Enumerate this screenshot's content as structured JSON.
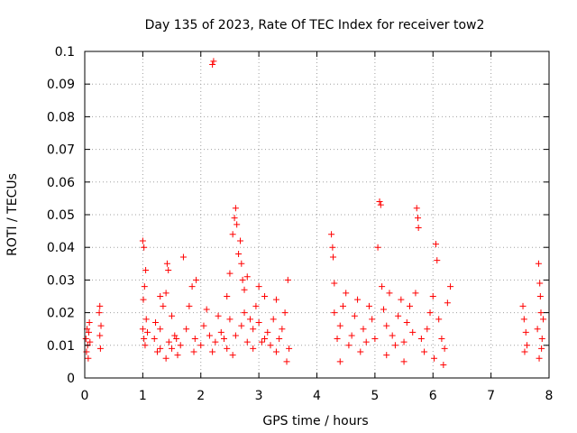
{
  "chart_data": {
    "type": "scatter",
    "title": "Day 135 of 2023, Rate Of TEC Index for receiver tow2",
    "xlabel": "GPS time / hours",
    "ylabel": "ROTI / TECUs",
    "xlim": [
      0,
      8
    ],
    "ylim": [
      0,
      0.1
    ],
    "x_ticks": [
      "0",
      "1",
      "2",
      "3",
      "4",
      "5",
      "6",
      "7",
      "8"
    ],
    "y_ticks": [
      "0",
      "0.01",
      "0.02",
      "0.03",
      "0.04",
      "0.05",
      "0.06",
      "0.07",
      "0.08",
      "0.09",
      "0.1"
    ],
    "grid": true,
    "marker": "plus",
    "color": "#ff0000",
    "series": [
      {
        "points": [
          [
            0.02,
            0.012
          ],
          [
            0.03,
            0.008
          ],
          [
            0.04,
            0.015
          ],
          [
            0.05,
            0.01
          ],
          [
            0.06,
            0.006
          ],
          [
            0.07,
            0.014
          ],
          [
            0.08,
            0.017
          ],
          [
            0.09,
            0.011
          ],
          [
            0.25,
            0.02
          ],
          [
            0.26,
            0.013
          ],
          [
            0.27,
            0.009
          ],
          [
            0.28,
            0.016
          ],
          [
            0.26,
            0.022
          ],
          [
            1.0,
            0.042
          ],
          [
            1.02,
            0.04
          ],
          [
            1.05,
            0.033
          ],
          [
            1.03,
            0.028
          ],
          [
            1.0,
            0.015
          ],
          [
            1.02,
            0.012
          ],
          [
            1.04,
            0.01
          ],
          [
            1.06,
            0.018
          ],
          [
            1.01,
            0.024
          ],
          [
            1.08,
            0.014
          ],
          [
            1.2,
            0.012
          ],
          [
            1.25,
            0.008
          ],
          [
            1.3,
            0.015
          ],
          [
            1.35,
            0.022
          ],
          [
            1.4,
            0.026
          ],
          [
            1.45,
            0.011
          ],
          [
            1.5,
            0.009
          ],
          [
            1.55,
            0.013
          ],
          [
            1.6,
            0.007
          ],
          [
            1.65,
            0.01
          ],
          [
            1.3,
            0.025
          ],
          [
            1.42,
            0.035
          ],
          [
            1.44,
            0.033
          ],
          [
            1.58,
            0.012
          ],
          [
            1.5,
            0.019
          ],
          [
            1.4,
            0.006
          ],
          [
            1.3,
            0.009
          ],
          [
            1.22,
            0.017
          ],
          [
            1.7,
            0.037
          ],
          [
            1.75,
            0.015
          ],
          [
            1.8,
            0.022
          ],
          [
            1.85,
            0.028
          ],
          [
            1.9,
            0.012
          ],
          [
            1.92,
            0.03
          ],
          [
            1.88,
            0.008
          ],
          [
            2.0,
            0.01
          ],
          [
            2.05,
            0.016
          ],
          [
            2.1,
            0.021
          ],
          [
            2.15,
            0.013
          ],
          [
            2.2,
            0.096
          ],
          [
            2.22,
            0.097
          ],
          [
            2.2,
            0.008
          ],
          [
            2.25,
            0.011
          ],
          [
            2.3,
            0.019
          ],
          [
            2.35,
            0.014
          ],
          [
            2.4,
            0.012
          ],
          [
            2.45,
            0.025
          ],
          [
            2.5,
            0.032
          ],
          [
            2.55,
            0.044
          ],
          [
            2.58,
            0.049
          ],
          [
            2.6,
            0.052
          ],
          [
            2.62,
            0.047
          ],
          [
            2.65,
            0.038
          ],
          [
            2.68,
            0.042
          ],
          [
            2.7,
            0.035
          ],
          [
            2.72,
            0.03
          ],
          [
            2.75,
            0.027
          ],
          [
            2.8,
            0.031
          ],
          [
            2.85,
            0.018
          ],
          [
            2.9,
            0.015
          ],
          [
            2.95,
            0.022
          ],
          [
            3.0,
            0.028
          ],
          [
            3.05,
            0.011
          ],
          [
            3.1,
            0.025
          ],
          [
            3.15,
            0.014
          ],
          [
            2.45,
            0.009
          ],
          [
            2.55,
            0.007
          ],
          [
            2.6,
            0.013
          ],
          [
            2.7,
            0.016
          ],
          [
            2.8,
            0.011
          ],
          [
            2.9,
            0.009
          ],
          [
            3.0,
            0.017
          ],
          [
            3.1,
            0.012
          ],
          [
            2.5,
            0.018
          ],
          [
            2.75,
            0.02
          ],
          [
            3.2,
            0.01
          ],
          [
            3.25,
            0.018
          ],
          [
            3.3,
            0.024
          ],
          [
            3.35,
            0.012
          ],
          [
            3.4,
            0.015
          ],
          [
            3.45,
            0.02
          ],
          [
            3.5,
            0.03
          ],
          [
            3.52,
            0.009
          ],
          [
            3.48,
            0.005
          ],
          [
            3.3,
            0.008
          ],
          [
            4.25,
            0.044
          ],
          [
            4.27,
            0.04
          ],
          [
            4.28,
            0.037
          ],
          [
            4.3,
            0.029
          ],
          [
            4.3,
            0.02
          ],
          [
            4.35,
            0.012
          ],
          [
            4.4,
            0.016
          ],
          [
            4.45,
            0.022
          ],
          [
            4.5,
            0.026
          ],
          [
            4.55,
            0.01
          ],
          [
            4.6,
            0.013
          ],
          [
            4.65,
            0.019
          ],
          [
            4.7,
            0.024
          ],
          [
            4.75,
            0.008
          ],
          [
            4.8,
            0.015
          ],
          [
            4.85,
            0.011
          ],
          [
            4.9,
            0.022
          ],
          [
            4.95,
            0.018
          ],
          [
            5.0,
            0.012
          ],
          [
            4.4,
            0.005
          ],
          [
            5.05,
            0.04
          ],
          [
            5.08,
            0.054
          ],
          [
            5.1,
            0.053
          ],
          [
            5.12,
            0.028
          ],
          [
            5.15,
            0.021
          ],
          [
            5.2,
            0.016
          ],
          [
            5.25,
            0.026
          ],
          [
            5.3,
            0.013
          ],
          [
            5.35,
            0.01
          ],
          [
            5.4,
            0.019
          ],
          [
            5.45,
            0.024
          ],
          [
            5.5,
            0.011
          ],
          [
            5.55,
            0.017
          ],
          [
            5.6,
            0.022
          ],
          [
            5.65,
            0.014
          ],
          [
            5.7,
            0.026
          ],
          [
            5.72,
            0.052
          ],
          [
            5.74,
            0.049
          ],
          [
            5.75,
            0.046
          ],
          [
            5.8,
            0.012
          ],
          [
            5.85,
            0.008
          ],
          [
            5.9,
            0.015
          ],
          [
            5.95,
            0.02
          ],
          [
            6.0,
            0.025
          ],
          [
            6.05,
            0.041
          ],
          [
            6.07,
            0.036
          ],
          [
            6.1,
            0.018
          ],
          [
            6.15,
            0.012
          ],
          [
            6.2,
            0.009
          ],
          [
            6.25,
            0.023
          ],
          [
            6.3,
            0.028
          ],
          [
            6.18,
            0.004
          ],
          [
            6.02,
            0.006
          ],
          [
            5.5,
            0.005
          ],
          [
            5.2,
            0.007
          ],
          [
            7.55,
            0.022
          ],
          [
            7.57,
            0.018
          ],
          [
            7.6,
            0.014
          ],
          [
            7.62,
            0.01
          ],
          [
            7.58,
            0.008
          ],
          [
            7.8,
            0.015
          ],
          [
            7.82,
            0.035
          ],
          [
            7.84,
            0.029
          ],
          [
            7.85,
            0.025
          ],
          [
            7.86,
            0.02
          ],
          [
            7.88,
            0.012
          ],
          [
            7.9,
            0.018
          ],
          [
            7.87,
            0.009
          ],
          [
            7.83,
            0.006
          ]
        ]
      }
    ]
  }
}
